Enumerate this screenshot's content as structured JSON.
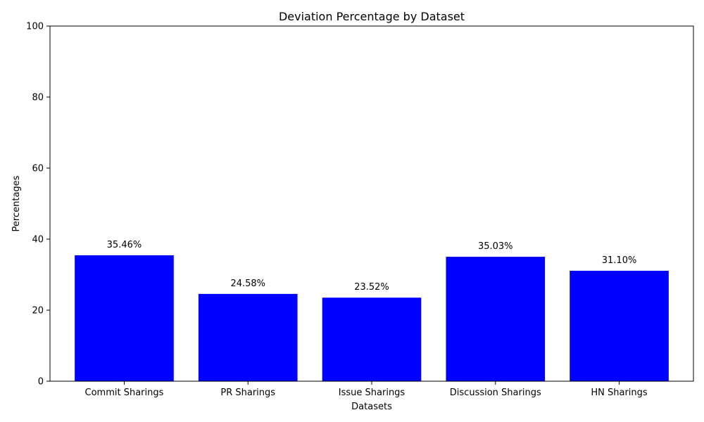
{
  "chart_data": {
    "type": "bar",
    "title": "Deviation Percentage by Dataset",
    "xlabel": "Datasets",
    "ylabel": "Percentages",
    "categories": [
      "Commit Sharings",
      "PR Sharings",
      "Issue Sharings",
      "Discussion Sharings",
      "HN Sharings"
    ],
    "values": [
      35.46,
      24.58,
      23.52,
      35.03,
      31.1
    ],
    "data_labels": [
      "35.46%",
      "24.58%",
      "23.52%",
      "35.03%",
      "31.10%"
    ],
    "ylim": [
      0,
      100
    ],
    "yticks": [
      0,
      20,
      40,
      60,
      80,
      100
    ],
    "ytick_labels": [
      "0",
      "20",
      "40",
      "60",
      "80",
      "100"
    ],
    "bar_color": "#0000ff",
    "grid": false
  }
}
